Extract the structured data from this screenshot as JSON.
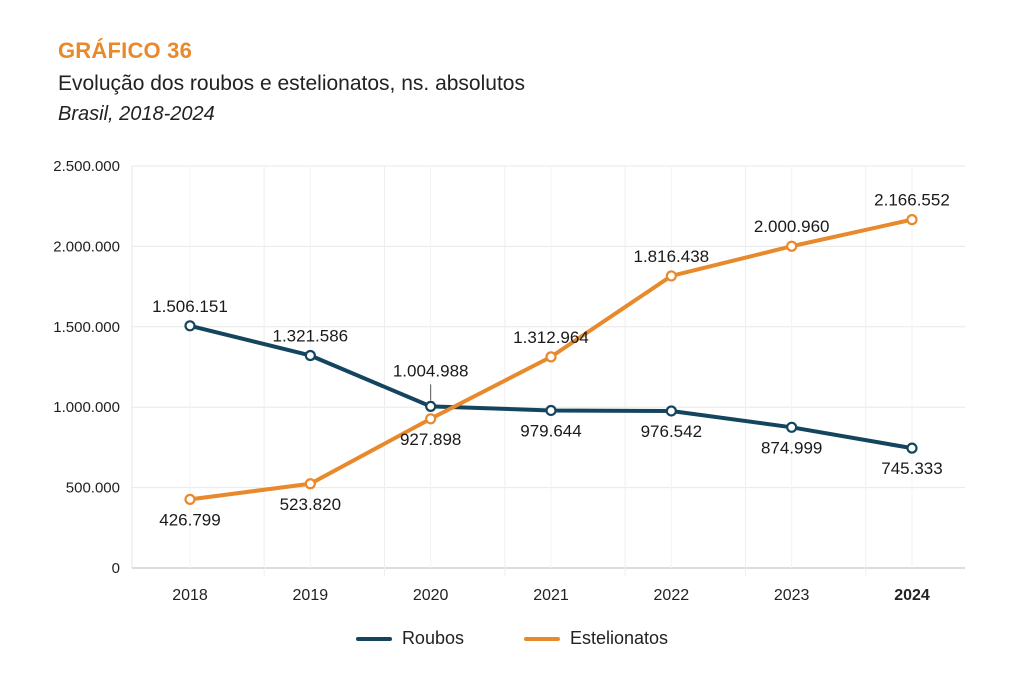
{
  "header": {
    "kicker": "GRÁFICO 36",
    "title": "Evolução dos roubos e estelionatos, ns. absolutos",
    "subtitle": "Brasil, 2018-2024"
  },
  "colors": {
    "roubos": "#14455f",
    "estelionatos": "#e8892b",
    "grid": "#e6e6e6",
    "kicker": "#e8892b"
  },
  "chart_data": {
    "type": "line",
    "title": "Evolução dos roubos e estelionatos, ns. absolutos",
    "subtitle": "Brasil, 2018-2024",
    "xlabel": "",
    "ylabel": "",
    "categories": [
      "2018",
      "2019",
      "2020",
      "2021",
      "2022",
      "2023",
      "2024"
    ],
    "highlight_category": "2024",
    "ylim": [
      0,
      2500000
    ],
    "yticks": [
      0,
      500000,
      1000000,
      1500000,
      2000000,
      2500000
    ],
    "ytick_labels": [
      "0",
      "500.000",
      "1.000.000",
      "1.500.000",
      "2.000.000",
      "2.500.000"
    ],
    "grid": true,
    "legend_position": "bottom-center",
    "series": [
      {
        "name": "Roubos",
        "color": "#14455f",
        "values": [
          1506151,
          1321586,
          1004988,
          979644,
          976542,
          874999,
          745333
        ],
        "labels": [
          "1.506.151",
          "1.321.586",
          "1.004.988",
          "979.644",
          "976.542",
          "874.999",
          "745.333"
        ],
        "label_position": [
          "above",
          "above",
          "above",
          "below",
          "below",
          "below",
          "below"
        ]
      },
      {
        "name": "Estelionatos",
        "color": "#e8892b",
        "values": [
          426799,
          523820,
          927898,
          1312964,
          1816438,
          2000960,
          2166552
        ],
        "labels": [
          "426.799",
          "523.820",
          "927.898",
          "1.312.964",
          "1.816.438",
          "2.000.960",
          "2.166.552"
        ],
        "label_position": [
          "below",
          "below",
          "below",
          "above",
          "above",
          "above",
          "above"
        ]
      }
    ]
  },
  "legend": {
    "items": [
      {
        "label": "Roubos",
        "color": "#14455f"
      },
      {
        "label": "Estelionatos",
        "color": "#e8892b"
      }
    ]
  }
}
